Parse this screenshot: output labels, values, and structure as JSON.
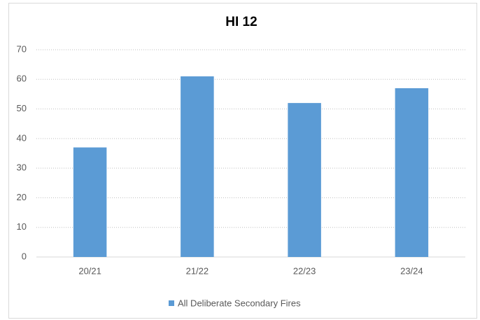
{
  "chart_data": {
    "type": "bar",
    "title": "HI 12",
    "categories": [
      "20/21",
      "21/22",
      "22/23",
      "23/24"
    ],
    "series": [
      {
        "name": "All Deliberate Secondary Fires",
        "color": "#5b9bd5",
        "values": [
          37,
          61,
          52,
          57
        ]
      }
    ],
    "ylim": [
      0,
      70
    ],
    "yticks": [
      0,
      10,
      20,
      30,
      40,
      50,
      60,
      70
    ],
    "grid": true,
    "legend": "bottom"
  }
}
